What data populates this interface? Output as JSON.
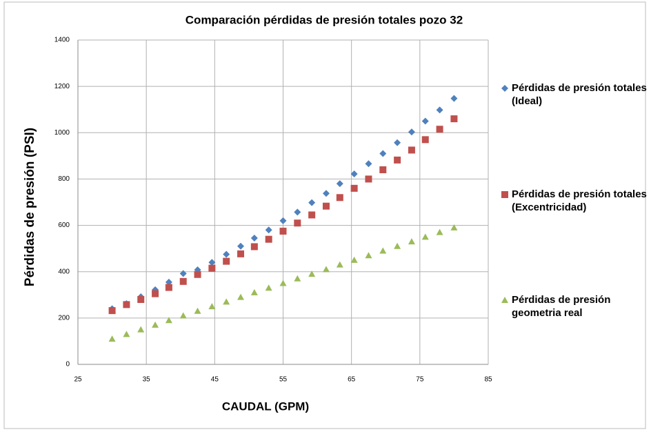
{
  "chart_data": {
    "type": "scatter",
    "title": "Comparación pérdidas de presión totales pozo 32",
    "x_label": "CAUDAL (GPM)",
    "y_label": "Pérdidas de presión (PSI)",
    "xlim": [
      25,
      85
    ],
    "xticks": [
      25,
      35,
      45,
      55,
      65,
      75,
      85
    ],
    "ylim": [
      0,
      1400
    ],
    "yticks": [
      0,
      200,
      400,
      600,
      800,
      1000,
      1200,
      1400
    ],
    "grid": true,
    "legend": "right",
    "x": [
      30,
      32.1,
      34.2,
      36.3,
      38.3,
      40.4,
      42.5,
      44.6,
      46.7,
      48.8,
      50.8,
      52.9,
      55.0,
      57.1,
      59.2,
      61.3,
      63.3,
      65.4,
      67.5,
      69.6,
      71.7,
      73.8,
      75.8,
      77.9,
      80
    ],
    "series": [
      {
        "name": "Pérdidas de presión totales (Ideal)",
        "color": "#4f81bd",
        "marker": "diamond",
        "values": [
          240,
          262,
          292,
          322,
          355,
          392,
          408,
          440,
          475,
          510,
          545,
          580,
          620,
          657,
          698,
          738,
          780,
          822,
          866,
          910,
          957,
          1003,
          1050,
          1098,
          1148
        ]
      },
      {
        "name": "Pérdidas de presión totales (Excentricidad)",
        "color": "#c0504d",
        "marker": "square",
        "values": [
          232,
          258,
          280,
          305,
          332,
          358,
          388,
          415,
          445,
          477,
          508,
          540,
          575,
          610,
          645,
          683,
          720,
          760,
          800,
          840,
          882,
          925,
          970,
          1015,
          1060
        ]
      },
      {
        "name": "Pérdidas de presión geometria real",
        "color": "#9bbb59",
        "marker": "triangle",
        "values": [
          110,
          130,
          150,
          170,
          190,
          210,
          230,
          250,
          270,
          290,
          310,
          330,
          350,
          370,
          390,
          410,
          430,
          450,
          470,
          490,
          510,
          530,
          550,
          570,
          590
        ]
      }
    ]
  }
}
